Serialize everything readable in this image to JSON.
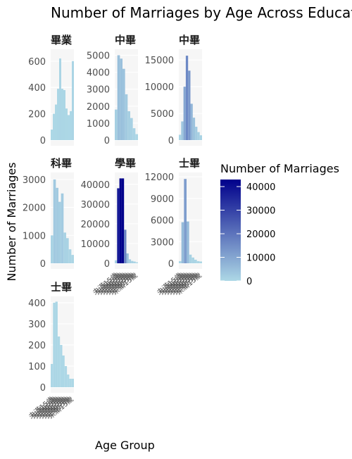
{
  "chart_data": {
    "type": "bar",
    "title": "Number of Marriages by Age Across Educatio",
    "xlabel": "Age Group",
    "ylabel": "Number of Marriages",
    "legend": {
      "title": "Number of Marriages",
      "ticks": [
        0,
        10000,
        20000,
        30000,
        40000
      ],
      "placement": "right",
      "low_color": "#add8e6",
      "high_color": "#00008b",
      "max": 43000
    },
    "x_tick_text": "未滿15歲",
    "panels": [
      {
        "label": "畢業",
        "ylim": [
          0,
          690
        ],
        "yticks": [
          0,
          200,
          400,
          600
        ],
        "values": [
          80,
          200,
          270,
          390,
          620,
          390,
          380,
          240,
          190,
          220,
          600
        ]
      },
      {
        "label": "中畢",
        "ylim": [
          0,
          5350
        ],
        "yticks": [
          0,
          1000,
          2000,
          3000,
          4000,
          5000
        ],
        "values": [
          1800,
          5000,
          4800,
          4200,
          2700,
          1700,
          1300,
          700,
          350
        ]
      },
      {
        "label": "中畢",
        "ylim": [
          0,
          17000
        ],
        "yticks": [
          0,
          5000,
          10000,
          15000
        ],
        "values": [
          1000,
          3500,
          10000,
          15800,
          13000,
          6800,
          4200,
          2500,
          1500,
          900
        ]
      },
      {
        "label": "科畢",
        "ylim": [
          0,
          3250
        ],
        "yticks": [
          0,
          1000,
          2000,
          3000
        ],
        "values": [
          1000,
          3000,
          2700,
          2200,
          2500,
          1100,
          900,
          500,
          300
        ]
      },
      {
        "label": "學畢",
        "ylim": [
          0,
          46000
        ],
        "yticks": [
          0,
          10000,
          20000,
          30000,
          40000
        ],
        "values": [
          1500,
          38000,
          43000,
          43000,
          17000,
          5000,
          2000,
          1200,
          900,
          500
        ]
      },
      {
        "label": "士畢",
        "ylim": [
          0,
          12600
        ],
        "yticks": [
          0,
          3000,
          6000,
          9000,
          12000
        ],
        "values": [
          300,
          5700,
          11700,
          5800,
          1200,
          800,
          500,
          300,
          250
        ]
      },
      {
        "label": "士畢",
        "ylim": [
          0,
          430
        ],
        "yticks": [
          0,
          100,
          200,
          300,
          400
        ],
        "values": [
          110,
          400,
          405,
          240,
          200,
          150,
          100,
          60,
          40,
          40
        ]
      }
    ]
  }
}
